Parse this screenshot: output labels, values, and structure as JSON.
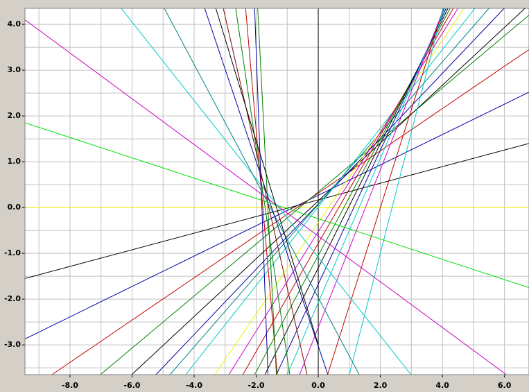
{
  "chart_data": {
    "type": "line",
    "xlim": [
      -9.45,
      6.79
    ],
    "ylim": [
      -3.65,
      4.35
    ],
    "xticks": [
      {
        "value": -8,
        "label": "-8.0"
      },
      {
        "value": -6,
        "label": "-6.0"
      },
      {
        "value": -4,
        "label": "-4.0"
      },
      {
        "value": -2,
        "label": "-2.0"
      },
      {
        "value": 0,
        "label": "0.0"
      },
      {
        "value": 2,
        "label": "2.0"
      },
      {
        "value": 4,
        "label": "4.0"
      },
      {
        "value": 6,
        "label": "6.0"
      }
    ],
    "yticks": [
      {
        "value": -3,
        "label": "-3.0"
      },
      {
        "value": -2,
        "label": "-2.0"
      },
      {
        "value": -1,
        "label": "-1.0"
      },
      {
        "value": 0,
        "label": "0.0"
      },
      {
        "value": 1,
        "label": "1.0"
      },
      {
        "value": 2,
        "label": "2.0"
      },
      {
        "value": 3,
        "label": "3.0"
      },
      {
        "value": 4,
        "label": "4.0"
      }
    ],
    "xgrid": [
      -9,
      -8,
      -7,
      -6,
      -5,
      -4,
      -3,
      -2,
      -1,
      0,
      1,
      2,
      3,
      4,
      5,
      6
    ],
    "ygrid": [
      -3.5,
      -3,
      -2.5,
      -2,
      -1.5,
      -1,
      -0.5,
      0,
      0.5,
      1,
      1.5,
      2,
      2.5,
      3,
      3.5,
      4
    ],
    "grid": true,
    "grid_color": "#c0c0c0",
    "series": [
      {
        "color": "#f0f000",
        "x": [
          -9.45,
          6.79
        ],
        "values": [
          0,
          0
        ]
      },
      {
        "color": "#000000",
        "x": [
          -9.45,
          6.79
        ],
        "values": [
          -1.55,
          1.4
        ]
      },
      {
        "color": "#0000a0",
        "x": [
          -9.45,
          6.79
        ],
        "values": [
          -2.87,
          2.52
        ]
      },
      {
        "color": "#c00000",
        "x": [
          -8.58,
          6.79
        ],
        "values": [
          -3.65,
          3.45
        ]
      },
      {
        "color": "#008000",
        "x": [
          -7.02,
          6.79
        ],
        "values": [
          -3.65,
          4.2
        ]
      },
      {
        "color": "#000000",
        "x": [
          -6.01,
          6.66
        ],
        "values": [
          -3.65,
          4.35
        ]
      },
      {
        "color": "#0000a0",
        "x": [
          -5.23,
          5.99
        ],
        "values": [
          -3.65,
          4.35
        ]
      },
      {
        "color": "#008080",
        "x": [
          -4.78,
          5.5
        ],
        "values": [
          -3.65,
          4.35
        ]
      },
      {
        "color": "#00c8c8",
        "x": [
          -4.27,
          5.05
        ],
        "values": [
          -3.65,
          4.35
        ]
      },
      {
        "color": "#f0f000",
        "x": [
          -3.33,
          4.7
        ],
        "values": [
          -3.65,
          4.35
        ]
      },
      {
        "color": "#c800c8",
        "x": [
          -2.88,
          4.5
        ],
        "values": [
          -3.65,
          4.35
        ]
      },
      {
        "color": "#c00000",
        "x": [
          -2.43,
          4.35
        ],
        "values": [
          -3.65,
          4.35
        ]
      },
      {
        "color": "#008000",
        "x": [
          -2.05,
          4.25
        ],
        "values": [
          -3.65,
          4.35
        ]
      },
      {
        "color": "#000000",
        "x": [
          -1.72,
          4.18
        ],
        "values": [
          -3.65,
          4.35
        ]
      },
      {
        "color": "#0000a0",
        "x": [
          -1.35,
          4.12
        ],
        "values": [
          -3.65,
          4.35
        ]
      },
      {
        "color": "#00c8c8",
        "x": [
          -1.0,
          4.08
        ],
        "values": [
          -3.65,
          4.35
        ]
      },
      {
        "color": "#c800c8",
        "x": [
          -0.6,
          4.05
        ],
        "values": [
          -3.65,
          4.35
        ]
      },
      {
        "color": "#c00000",
        "x": [
          0.3,
          4.03
        ],
        "values": [
          -3.65,
          4.35
        ]
      },
      {
        "color": "#00c8c8",
        "x": [
          1.0,
          4.02
        ],
        "values": [
          -3.65,
          4.35
        ]
      },
      {
        "color": "#00e000",
        "x": [
          -9.45,
          6.79
        ],
        "values": [
          1.85,
          -1.75
        ]
      },
      {
        "color": "#c800c8",
        "x": [
          -9.45,
          6.06
        ],
        "values": [
          4.1,
          -3.65
        ]
      },
      {
        "color": "#00c8c8",
        "x": [
          -6.35,
          2.99
        ],
        "values": [
          4.35,
          -3.65
        ]
      },
      {
        "color": "#008080",
        "x": [
          -4.96,
          1.32
        ],
        "values": [
          4.35,
          -3.65
        ]
      },
      {
        "color": "#0000a0",
        "x": [
          -3.66,
          0.31
        ],
        "values": [
          4.35,
          -3.65
        ]
      },
      {
        "color": "#800000",
        "x": [
          -3.06,
          -0.36
        ],
        "values": [
          4.35,
          -3.65
        ]
      },
      {
        "color": "#008000",
        "x": [
          -2.66,
          -0.92
        ],
        "values": [
          4.35,
          -3.65
        ]
      },
      {
        "color": "#c00000",
        "x": [
          -2.34,
          -1.32
        ],
        "values": [
          4.35,
          -3.65
        ]
      },
      {
        "color": "#0000a0",
        "x": [
          -2.05,
          -1.62
        ],
        "values": [
          4.35,
          -3.65
        ]
      },
      {
        "color": "#008000",
        "x": [
          -1.95,
          -1.35
        ],
        "values": [
          4.35,
          -3.65
        ]
      },
      {
        "color": "#000000",
        "x": [
          -3.3,
          0.0
        ],
        "values": [
          4.35,
          -3.0
        ]
      }
    ]
  }
}
